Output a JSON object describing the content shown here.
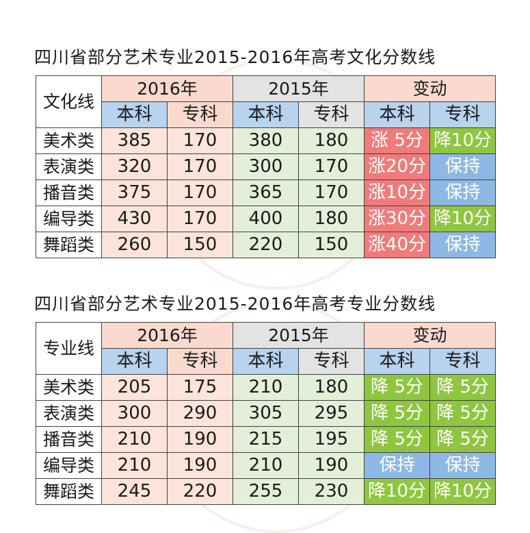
{
  "colors": {
    "header_pink": "#fbd9cf",
    "header_blue": "#b7d3ee",
    "header_gray": "#e3e3e3",
    "cell_pink": "#fce4da",
    "cell_green": "#e3efd9",
    "change_red": "#f07b7b",
    "change_green": "#8fc63f",
    "change_blue": "#8db8e3"
  },
  "tables": [
    {
      "title": "四川省部分艺术专业2015-2016年高考文化分数线",
      "corner": "文化线",
      "groups": [
        "2016年",
        "2015年",
        "变动"
      ],
      "subheaders": [
        "本科",
        "专科",
        "本科",
        "专科",
        "本科",
        "专科"
      ],
      "rows": [
        {
          "label": "美术类",
          "v2016b": "385",
          "v2016z": "170",
          "v2015b": "380",
          "v2015z": "180",
          "chb": "涨 5分",
          "chb_kind": "red",
          "chz": "降10分",
          "chz_kind": "green"
        },
        {
          "label": "表演类",
          "v2016b": "320",
          "v2016z": "170",
          "v2015b": "300",
          "v2015z": "170",
          "chb": "涨20分",
          "chb_kind": "red",
          "chz": "保持",
          "chz_kind": "blue"
        },
        {
          "label": "播音类",
          "v2016b": "375",
          "v2016z": "170",
          "v2015b": "365",
          "v2015z": "170",
          "chb": "涨10分",
          "chb_kind": "red",
          "chz": "保持",
          "chz_kind": "blue"
        },
        {
          "label": "编导类",
          "v2016b": "430",
          "v2016z": "170",
          "v2015b": "400",
          "v2015z": "180",
          "chb": "涨30分",
          "chb_kind": "red",
          "chz": "降10分",
          "chz_kind": "green"
        },
        {
          "label": "舞蹈类",
          "v2016b": "260",
          "v2016z": "150",
          "v2015b": "220",
          "v2015z": "150",
          "chb": "涨40分",
          "chb_kind": "red",
          "chz": "保持",
          "chz_kind": "blue"
        }
      ]
    },
    {
      "title": "四川省部分艺术专业2015-2016年高考专业分数线",
      "corner": "专业线",
      "groups": [
        "2016年",
        "2015年",
        "变动"
      ],
      "subheaders": [
        "本科",
        "专科",
        "本科",
        "专科",
        "本科",
        "专科"
      ],
      "rows": [
        {
          "label": "美术类",
          "v2016b": "205",
          "v2016z": "175",
          "v2015b": "210",
          "v2015z": "180",
          "chb": "降 5分",
          "chb_kind": "green",
          "chz": "降 5分",
          "chz_kind": "green"
        },
        {
          "label": "表演类",
          "v2016b": "300",
          "v2016z": "290",
          "v2015b": "305",
          "v2015z": "295",
          "chb": "降 5分",
          "chb_kind": "green",
          "chz": "降 5分",
          "chz_kind": "green"
        },
        {
          "label": "播音类",
          "v2016b": "210",
          "v2016z": "190",
          "v2015b": "215",
          "v2015z": "195",
          "chb": "降 5分",
          "chb_kind": "green",
          "chz": "降 5分",
          "chz_kind": "green"
        },
        {
          "label": "编导类",
          "v2016b": "210",
          "v2016z": "190",
          "v2015b": "210",
          "v2015z": "190",
          "chb": "保持",
          "chb_kind": "blue",
          "chz": "保持",
          "chz_kind": "blue"
        },
        {
          "label": "舞蹈类",
          "v2016b": "245",
          "v2016z": "220",
          "v2015b": "255",
          "v2015z": "230",
          "chb": "降10分",
          "chb_kind": "green",
          "chz": "降10分",
          "chz_kind": "green"
        }
      ]
    }
  ]
}
